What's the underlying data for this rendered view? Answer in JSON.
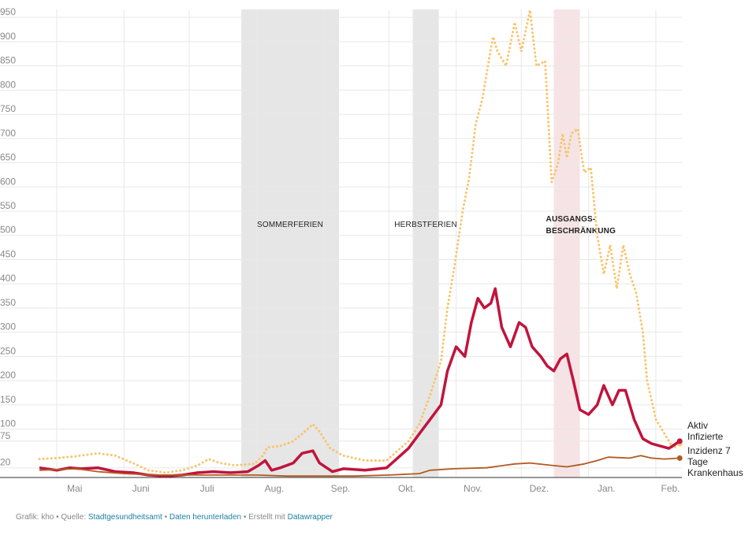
{
  "chart_data": {
    "type": "line",
    "x_axis": {
      "type": "date",
      "ticks": [
        "Mai",
        "Juni",
        "Juli",
        "Aug.",
        "Sep.",
        "Okt.",
        "Nov.",
        "Dez.",
        "Jan.",
        "Feb."
      ],
      "range": [
        "2020-04-23",
        "2021-02-13"
      ]
    },
    "y_axis": {
      "ticks": [
        20,
        75,
        100,
        150,
        200,
        250,
        300,
        350,
        400,
        450,
        500,
        550,
        600,
        650,
        700,
        750,
        800,
        850,
        900,
        950
      ],
      "ylim": [
        0,
        960
      ]
    },
    "grid": true,
    "bands": [
      {
        "label": "SOMMERFERIEN",
        "start": "2020-07-25",
        "end": "2020-09-08",
        "color": "#e6e6e6"
      },
      {
        "label": "HERBSTFERIEN",
        "start": "2020-10-12",
        "end": "2020-10-24",
        "color": "#e6e6e6"
      },
      {
        "label": "AUSGANGS-",
        "label2": "BESCHRÄNKUNG",
        "start": "2020-12-16",
        "end": "2020-12-28",
        "color": "#f6e3e5"
      }
    ],
    "series": [
      {
        "name": "Inzidenz 7 Tage",
        "color": "#f9c46b",
        "style": "dotted",
        "points": [
          [
            "2020-04-23",
            38
          ],
          [
            "2020-05-01",
            40
          ],
          [
            "2020-05-10",
            44
          ],
          [
            "2020-05-20",
            50
          ],
          [
            "2020-05-28",
            45
          ],
          [
            "2020-06-05",
            30
          ],
          [
            "2020-06-12",
            15
          ],
          [
            "2020-06-20",
            10
          ],
          [
            "2020-06-28",
            15
          ],
          [
            "2020-07-05",
            25
          ],
          [
            "2020-07-10",
            38
          ],
          [
            "2020-07-15",
            30
          ],
          [
            "2020-07-22",
            25
          ],
          [
            "2020-07-31",
            28
          ],
          [
            "2020-08-04",
            45
          ],
          [
            "2020-08-06",
            62
          ],
          [
            "2020-08-12",
            65
          ],
          [
            "2020-08-18",
            75
          ],
          [
            "2020-08-22",
            90
          ],
          [
            "2020-08-27",
            110
          ],
          [
            "2020-08-30",
            95
          ],
          [
            "2020-09-04",
            60
          ],
          [
            "2020-09-10",
            45
          ],
          [
            "2020-09-20",
            35
          ],
          [
            "2020-09-30",
            35
          ],
          [
            "2020-10-05",
            55
          ],
          [
            "2020-10-10",
            75
          ],
          [
            "2020-10-15",
            110
          ],
          [
            "2020-10-20",
            170
          ],
          [
            "2020-10-25",
            240
          ],
          [
            "2020-10-28",
            350
          ],
          [
            "2020-10-31",
            430
          ],
          [
            "2020-11-04",
            550
          ],
          [
            "2020-11-07",
            620
          ],
          [
            "2020-11-10",
            730
          ],
          [
            "2020-11-13",
            780
          ],
          [
            "2020-11-16",
            860
          ],
          [
            "2020-11-18",
            910
          ],
          [
            "2020-11-20",
            880
          ],
          [
            "2020-11-24",
            850
          ],
          [
            "2020-11-28",
            940
          ],
          [
            "2020-12-01",
            880
          ],
          [
            "2020-12-05",
            965
          ],
          [
            "2020-12-08",
            850
          ],
          [
            "2020-12-12",
            860
          ],
          [
            "2020-12-15",
            610
          ],
          [
            "2020-12-18",
            650
          ],
          [
            "2020-12-20",
            710
          ],
          [
            "2020-12-22",
            660
          ],
          [
            "2020-12-24",
            710
          ],
          [
            "2020-12-27",
            720
          ],
          [
            "2020-12-30",
            630
          ],
          [
            "2021-01-02",
            640
          ],
          [
            "2021-01-05",
            500
          ],
          [
            "2021-01-08",
            420
          ],
          [
            "2021-01-11",
            480
          ],
          [
            "2021-01-14",
            390
          ],
          [
            "2021-01-17",
            480
          ],
          [
            "2021-01-20",
            420
          ],
          [
            "2021-01-23",
            380
          ],
          [
            "2021-01-26",
            300
          ],
          [
            "2021-01-28",
            200
          ],
          [
            "2021-02-01",
            120
          ],
          [
            "2021-02-05",
            90
          ],
          [
            "2021-02-09",
            60
          ],
          [
            "2021-02-12",
            70
          ]
        ]
      },
      {
        "name": "Aktiv Infizierte",
        "label_lines": [
          "Aktiv",
          "Infizierte"
        ],
        "color": "#c0143c",
        "style": "solid-thick",
        "points": [
          [
            "2020-04-23",
            20
          ],
          [
            "2020-05-01",
            15
          ],
          [
            "2020-05-07",
            20
          ],
          [
            "2020-05-12",
            18
          ],
          [
            "2020-05-20",
            20
          ],
          [
            "2020-05-28",
            12
          ],
          [
            "2020-06-05",
            10
          ],
          [
            "2020-06-12",
            5
          ],
          [
            "2020-06-20",
            3
          ],
          [
            "2020-06-28",
            5
          ],
          [
            "2020-07-05",
            10
          ],
          [
            "2020-07-12",
            12
          ],
          [
            "2020-07-20",
            10
          ],
          [
            "2020-07-28",
            12
          ],
          [
            "2020-08-02",
            25
          ],
          [
            "2020-08-05",
            35
          ],
          [
            "2020-08-08",
            15
          ],
          [
            "2020-08-12",
            20
          ],
          [
            "2020-08-18",
            30
          ],
          [
            "2020-08-22",
            50
          ],
          [
            "2020-08-27",
            55
          ],
          [
            "2020-08-30",
            30
          ],
          [
            "2020-09-05",
            12
          ],
          [
            "2020-09-10",
            18
          ],
          [
            "2020-09-20",
            15
          ],
          [
            "2020-09-30",
            20
          ],
          [
            "2020-10-05",
            40
          ],
          [
            "2020-10-10",
            60
          ],
          [
            "2020-10-15",
            90
          ],
          [
            "2020-10-20",
            120
          ],
          [
            "2020-10-25",
            150
          ],
          [
            "2020-10-28",
            220
          ],
          [
            "2020-11-01",
            270
          ],
          [
            "2020-11-05",
            250
          ],
          [
            "2020-11-08",
            320
          ],
          [
            "2020-11-11",
            370
          ],
          [
            "2020-11-14",
            350
          ],
          [
            "2020-11-17",
            360
          ],
          [
            "2020-11-19",
            390
          ],
          [
            "2020-11-22",
            310
          ],
          [
            "2020-11-26",
            270
          ],
          [
            "2020-11-30",
            320
          ],
          [
            "2020-12-03",
            310
          ],
          [
            "2020-12-06",
            270
          ],
          [
            "2020-12-10",
            250
          ],
          [
            "2020-12-13",
            230
          ],
          [
            "2020-12-16",
            220
          ],
          [
            "2020-12-19",
            245
          ],
          [
            "2020-12-22",
            255
          ],
          [
            "2020-12-25",
            200
          ],
          [
            "2020-12-28",
            140
          ],
          [
            "2021-01-01",
            130
          ],
          [
            "2021-01-05",
            150
          ],
          [
            "2021-01-08",
            190
          ],
          [
            "2021-01-12",
            150
          ],
          [
            "2021-01-15",
            180
          ],
          [
            "2021-01-18",
            180
          ],
          [
            "2021-01-22",
            120
          ],
          [
            "2021-01-26",
            80
          ],
          [
            "2021-01-30",
            70
          ],
          [
            "2021-02-03",
            65
          ],
          [
            "2021-02-07",
            60
          ],
          [
            "2021-02-12",
            75
          ]
        ]
      },
      {
        "name": "Krankenhaus",
        "color": "#b35a1f",
        "style": "solid-thin",
        "points": [
          [
            "2020-04-23",
            15
          ],
          [
            "2020-05-10",
            18
          ],
          [
            "2020-05-20",
            12
          ],
          [
            "2020-06-01",
            8
          ],
          [
            "2020-06-15",
            5
          ],
          [
            "2020-07-01",
            5
          ],
          [
            "2020-07-15",
            5
          ],
          [
            "2020-08-01",
            5
          ],
          [
            "2020-08-15",
            3
          ],
          [
            "2020-09-01",
            3
          ],
          [
            "2020-09-15",
            3
          ],
          [
            "2020-10-01",
            5
          ],
          [
            "2020-10-15",
            8
          ],
          [
            "2020-10-20",
            15
          ],
          [
            "2020-10-31",
            18
          ],
          [
            "2020-11-15",
            20
          ],
          [
            "2020-11-28",
            28
          ],
          [
            "2020-12-05",
            30
          ],
          [
            "2020-12-15",
            25
          ],
          [
            "2020-12-22",
            22
          ],
          [
            "2020-12-30",
            28
          ],
          [
            "2021-01-05",
            35
          ],
          [
            "2021-01-10",
            42
          ],
          [
            "2021-01-20",
            40
          ],
          [
            "2021-01-25",
            45
          ],
          [
            "2021-01-30",
            40
          ],
          [
            "2021-02-05",
            38
          ],
          [
            "2021-02-12",
            40
          ]
        ]
      }
    ]
  },
  "footer": {
    "prefix": "Grafik: kho • Quelle: ",
    "source_link": "Stadtgesundheitsamt",
    "sep1": " • ",
    "download_link": "Daten herunterladen",
    "sep2": " • Erstellt mit ",
    "tool_link": "Datawrapper"
  }
}
